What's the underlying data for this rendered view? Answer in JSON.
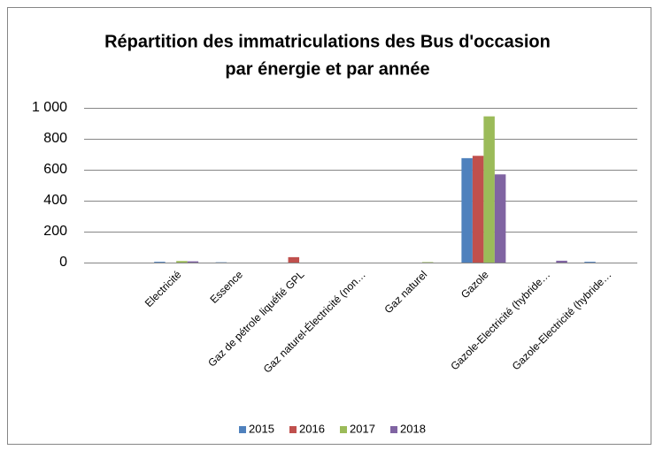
{
  "chart_data": {
    "type": "bar",
    "title": [
      "Répartition des immatriculations des Bus d'occasion",
      "par énergie et par année"
    ],
    "categories": [
      null,
      "Electricité",
      "Essence",
      "Gaz de pétrole liquéfié GPL",
      "Gaz naturel-Électricité (non…",
      "Gaz naturel",
      "Gazole",
      "Gazole-Electricité (hybride…",
      "Gazole-Electricité (hybride…"
    ],
    "series": [
      {
        "name": "2015",
        "color": "#4f81bd",
        "values": [
          0,
          5,
          2,
          0,
          0,
          0,
          675,
          0,
          5
        ]
      },
      {
        "name": "2016",
        "color": "#c0504d",
        "values": [
          0,
          0,
          0,
          35,
          0,
          0,
          690,
          0,
          0
        ]
      },
      {
        "name": "2017",
        "color": "#9bbb59",
        "values": [
          0,
          10,
          0,
          0,
          0,
          3,
          945,
          0,
          0
        ]
      },
      {
        "name": "2018",
        "color": "#8064a2",
        "values": [
          0,
          8,
          0,
          0,
          0,
          0,
          570,
          12,
          0
        ]
      }
    ],
    "ylim": [
      0,
      1000
    ],
    "yticks": [
      0,
      200,
      400,
      600,
      800,
      {
        "value": 1000,
        "label": "1 000"
      }
    ],
    "grid": true,
    "legend": "bottom"
  }
}
